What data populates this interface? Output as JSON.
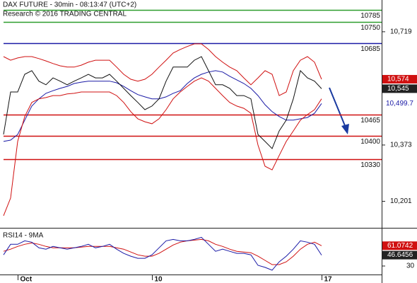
{
  "chart_data": {
    "type": "line",
    "title": "DAX FUTURE - 30min - 08:13:47 (UTC+2)",
    "subtitle": "Research © 2016 TRADING CENTRAL",
    "categories": [
      null,
      null,
      "Oct",
      null,
      null,
      null,
      null,
      null,
      null,
      null,
      null,
      null,
      null,
      null,
      null,
      null,
      null,
      null,
      null,
      null,
      null,
      "10",
      null,
      null,
      null,
      null,
      null,
      null,
      null,
      null,
      null,
      null,
      null,
      null,
      null,
      null,
      null,
      null,
      null,
      null,
      null,
      null,
      null,
      null,
      null,
      "17"
    ],
    "ylim": [
      10120,
      10816
    ],
    "yticks": [
      {
        "value": 10719,
        "label": "10,719"
      },
      {
        "value": 10373,
        "label": "10,373"
      },
      {
        "value": 10201,
        "label": "10,201"
      }
    ],
    "levels": [
      {
        "value": 10785,
        "color": "#2e9e2e"
      },
      {
        "value": 10750,
        "color": "#2e9e2e"
      },
      {
        "value": 10685,
        "color": "#1a1aa6"
      },
      {
        "value": 10465,
        "color": "#d01010"
      },
      {
        "value": 10400,
        "color": "#d01010"
      },
      {
        "value": 10330,
        "color": "#d01010"
      }
    ],
    "series": [
      {
        "color": "#111111",
        "tag": "dark",
        "last_label": "10,545",
        "values": [
          10405,
          10535,
          10535,
          10589,
          10600,
          10568,
          10557,
          10578,
          10568,
          10557,
          10568,
          10578,
          10589,
          10578,
          10578,
          10589,
          10568,
          10546,
          10524,
          10503,
          10481,
          10492,
          10514,
          10568,
          10611,
          10611,
          10611,
          10632,
          10643,
          10600,
          10557,
          10557,
          10546,
          10524,
          10524,
          10514,
          10405,
          10384,
          10362,
          10416,
          10449,
          10514,
          10600,
          10578,
          10568,
          10545
        ]
      },
      {
        "color": "#d01010",
        "tag": "box",
        "last_label": "10,574",
        "values": [
          10643,
          10632,
          10639,
          10643,
          10643,
          10637,
          10630,
          10622,
          10615,
          10611,
          10611,
          10617,
          10626,
          10632,
          10632,
          10632,
          10611,
          10589,
          10574,
          10568,
          10574,
          10589,
          10611,
          10632,
          10654,
          10665,
          10674,
          10682,
          10682,
          10665,
          10643,
          10626,
          10611,
          10600,
          10578,
          10557,
          10578,
          10600,
          10589,
          10524,
          10535,
          10600,
          10632,
          10643,
          10626,
          10574
        ]
      },
      {
        "color": "#d01010",
        "tag": null,
        "last_label": null,
        "values": [
          10157,
          10211,
          10384,
          10460,
          10503,
          10514,
          10518,
          10524,
          10524,
          10529,
          10531,
          10535,
          10535,
          10535,
          10535,
          10535,
          10524,
          10503,
          10475,
          10453,
          10444,
          10438,
          10453,
          10481,
          10514,
          10535,
          10552,
          10568,
          10578,
          10568,
          10546,
          10524,
          10503,
          10492,
          10485,
          10470,
          10373,
          10308,
          10297,
          10341,
          10384,
          10416,
          10449,
          10466,
          10481,
          10514
        ]
      },
      {
        "color": "#1a1aa6",
        "tag": "text",
        "last_label": "10,499.7",
        "values": [
          10384,
          10388,
          10405,
          10449,
          10492,
          10514,
          10531,
          10539,
          10546,
          10552,
          10561,
          10565,
          10568,
          10568,
          10568,
          10568,
          10563,
          10552,
          10539,
          10527,
          10520,
          10514,
          10514,
          10520,
          10531,
          10539,
          10561,
          10578,
          10589,
          10596,
          10600,
          10596,
          10583,
          10572,
          10561,
          10546,
          10524,
          10496,
          10475,
          10460,
          10449,
          10449,
          10453,
          10457,
          10470,
          10499.7
        ]
      }
    ],
    "rsi": {
      "title": "RSI14 - 9MA",
      "ylim": [
        17,
        83
      ],
      "yticks": [
        30
      ],
      "series": [
        {
          "color": "#1a1aa6",
          "tag": "dark",
          "last_label": "46.6456",
          "values": [
            47.1,
            63.2,
            63.2,
            68.5,
            66.4,
            57.8,
            55.7,
            60.0,
            57.8,
            55.7,
            57.8,
            60.0,
            63.2,
            57.8,
            60.0,
            63.2,
            55.7,
            49.3,
            45.0,
            41.8,
            41.8,
            47.1,
            57.8,
            68.5,
            70.7,
            68.5,
            68.5,
            70.7,
            73.9,
            63.2,
            52.5,
            55.7,
            52.5,
            49.3,
            49.3,
            47.1,
            31.1,
            27.9,
            23.6,
            36.4,
            45.0,
            55.7,
            68.5,
            66.4,
            63.2,
            46.6456
          ]
        },
        {
          "color": "#d01010",
          "tag": "box",
          "last_label": "61.0742",
          "values": [
            52.5,
            55.7,
            60.0,
            63.2,
            65.3,
            63.2,
            60.0,
            57.8,
            57.8,
            57.8,
            57.8,
            58.9,
            60.0,
            60.0,
            60.0,
            60.0,
            57.8,
            55.7,
            51.4,
            47.1,
            45.0,
            45.0,
            49.3,
            55.7,
            62.1,
            66.4,
            68.5,
            69.6,
            70.7,
            68.5,
            63.2,
            60.0,
            55.7,
            52.5,
            51.4,
            50.3,
            45.0,
            38.6,
            32.1,
            32.1,
            36.4,
            45.0,
            55.7,
            63.2,
            66.4,
            61.0742
          ]
        }
      ]
    }
  }
}
